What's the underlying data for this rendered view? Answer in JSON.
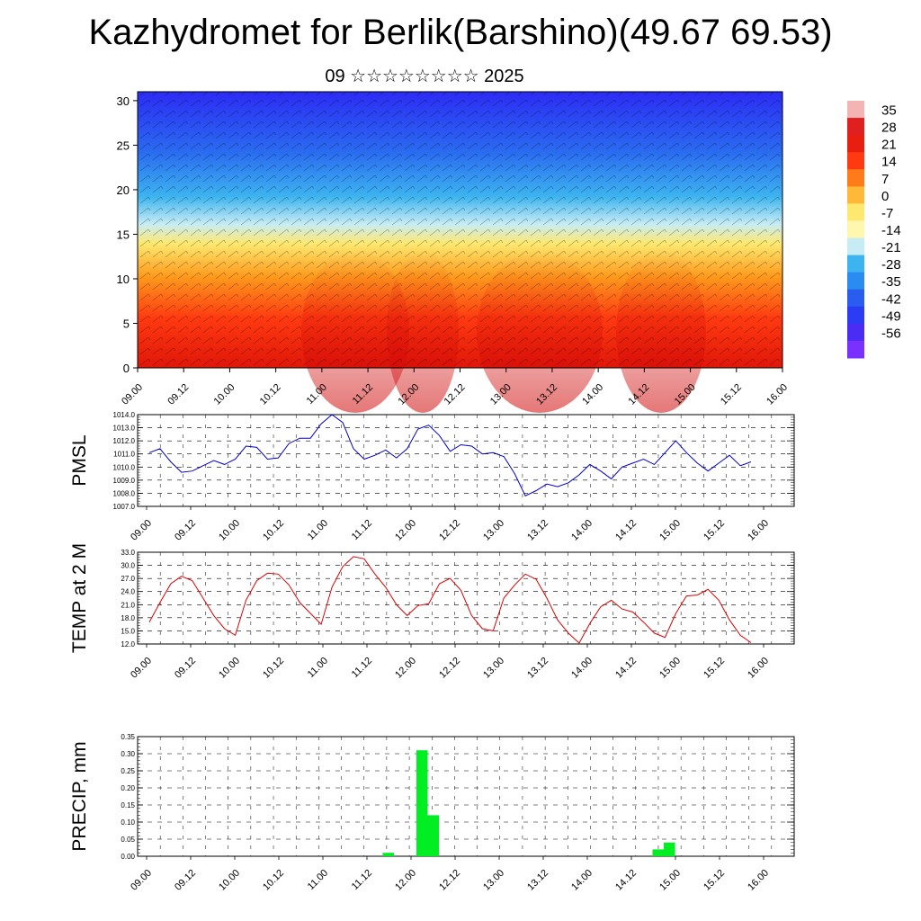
{
  "header": {
    "title": "Kazhydromet for Berlik(Barshino)(49.67 69.53)",
    "subtitle": "09 ☆☆☆☆☆☆☆☆ 2025"
  },
  "chart_data": [
    {
      "type": "heatmap",
      "title": "",
      "x_ticks": [
        "09.00",
        "09.12",
        "10.00",
        "10.12",
        "11.00",
        "11.12",
        "12.00",
        "12.12",
        "13.00",
        "13.12",
        "14.00",
        "14.12",
        "15.00",
        "15.12",
        "16.00"
      ],
      "ylim": [
        0,
        31
      ],
      "y_ticks": [
        0,
        5,
        10,
        15,
        20,
        25,
        30
      ],
      "colorbar_levels": [
        35,
        28,
        21,
        14,
        7,
        0,
        -7,
        -14,
        -21,
        -28,
        -35,
        -42,
        -49,
        -56
      ],
      "colors": {
        "warm": "#e81e10",
        "neutral": "#fff47a",
        "cold": "#3a30ff"
      },
      "overlay": "wind barbs"
    },
    {
      "type": "line",
      "ylabel": "PMSL",
      "ylim": [
        1007,
        1014
      ],
      "y_ticks": [
        "1007.0",
        "1008.0",
        "1009.0",
        "1010.0",
        "1011.0",
        "1012.0",
        "1013.0",
        "1014.0"
      ],
      "x_ticks": [
        "09.00",
        "09.12",
        "10.00",
        "10.12",
        "11.00",
        "11.12",
        "12.00",
        "12.12",
        "13.00",
        "13.12",
        "14.00",
        "14.12",
        "15.00",
        "15.12",
        "16.00"
      ],
      "series": [
        {
          "color": "#0000cc",
          "values": [
            1011.1,
            1011.4,
            1010.4,
            1009.6,
            1009.7,
            1010.1,
            1010.5,
            1010.2,
            1010.6,
            1011.6,
            1011.5,
            1010.6,
            1010.7,
            1011.8,
            1012.2,
            1012.2,
            1013.3,
            1014.0,
            1013.4,
            1011.4,
            1010.6,
            1010.9,
            1011.3,
            1010.7,
            1011.4,
            1012.9,
            1013.2,
            1012.4,
            1011.2,
            1011.7,
            1011.6,
            1011.0,
            1011.1,
            1010.8,
            1009.5,
            1007.8,
            1008.2,
            1008.7,
            1008.5,
            1008.8,
            1009.4,
            1010.2,
            1009.7,
            1009.1,
            1010.0,
            1010.3,
            1010.6,
            1010.2,
            1011.1,
            1012.0,
            1011.1,
            1010.3,
            1009.7,
            1010.3,
            1010.9,
            1010.1,
            1010.4
          ]
        }
      ]
    },
    {
      "type": "line",
      "ylabel": "TEMP at 2 M",
      "ylim": [
        12,
        33
      ],
      "y_ticks": [
        "12.0",
        "15.0",
        "18.0",
        "21.0",
        "24.0",
        "27.0",
        "30.0",
        "33.0"
      ],
      "x_ticks": [
        "09.00",
        "09.12",
        "10.00",
        "10.12",
        "11.00",
        "11.12",
        "12.00",
        "12.12",
        "13.00",
        "13.12",
        "14.00",
        "14.12",
        "15.00",
        "15.12",
        "16.00"
      ],
      "series": [
        {
          "color": "#dd0000",
          "values": [
            17.0,
            21.5,
            25.8,
            27.5,
            26.5,
            22.5,
            18.5,
            15.5,
            14.0,
            22.0,
            26.5,
            28.2,
            28.0,
            25.5,
            21.5,
            19.0,
            16.5,
            25.0,
            29.7,
            32.0,
            31.5,
            28.0,
            25.0,
            21.0,
            18.5,
            20.8,
            21.2,
            25.8,
            27.0,
            24.3,
            18.5,
            15.5,
            15.0,
            22.5,
            25.5,
            28.0,
            26.8,
            22.5,
            17.5,
            14.5,
            12.2,
            16.7,
            20.5,
            22.0,
            20.0,
            19.3,
            17.0,
            14.5,
            13.5,
            19.0,
            23.0,
            23.2,
            24.5,
            22.0,
            17.5,
            14.0,
            12.3
          ]
        }
      ]
    },
    {
      "type": "bar",
      "ylabel": "PRECIP, mm",
      "ylim": [
        0,
        0.35
      ],
      "y_ticks": [
        "0.00",
        "0.05",
        "0.10",
        "0.15",
        "0.20",
        "0.25",
        "0.30",
        "0.35"
      ],
      "x_ticks": [
        "09.00",
        "09.12",
        "10.00",
        "10.12",
        "11.00",
        "11.12",
        "12.00",
        "12.12",
        "13.00",
        "13.12",
        "14.00",
        "14.12",
        "15.00",
        "15.12",
        "16.00"
      ],
      "bar_color": "#00ee22",
      "bars": [
        {
          "x": "11.15",
          "value": 0.01
        },
        {
          "x": "12.00",
          "value": 0.31
        },
        {
          "x": "12.03",
          "value": 0.12
        },
        {
          "x": "14.15",
          "value": 0.02
        },
        {
          "x": "14.18",
          "value": 0.04
        }
      ]
    }
  ]
}
